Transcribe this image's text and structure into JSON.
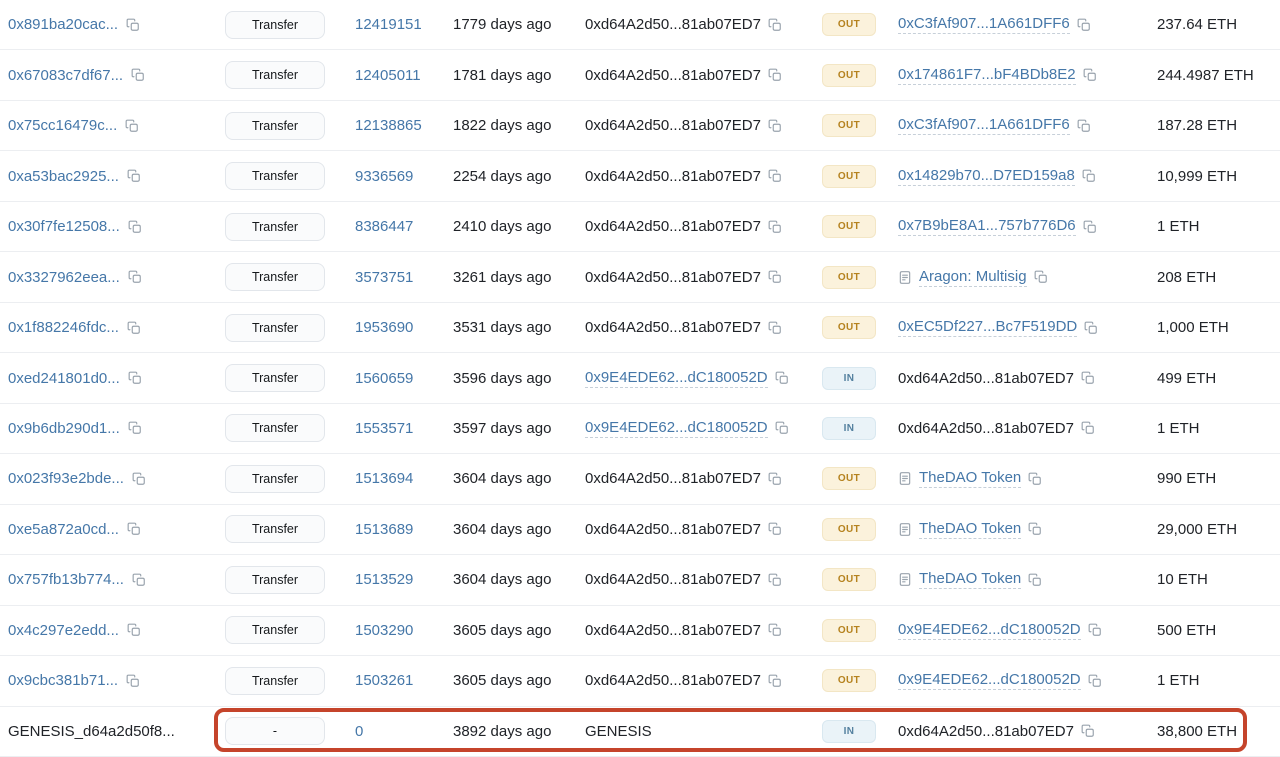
{
  "colors": {
    "link_blue": "#4577a8",
    "text_dark": "#202328",
    "icon_gray": "#99a3ad",
    "badge_out_bg": "#fbf2dc",
    "badge_out_text": "#b5821e",
    "badge_in_bg": "#eaf3f8",
    "badge_in_text": "#54809f",
    "highlight_red": "#c5442b",
    "row_divider": "#eceef1"
  },
  "icons": {
    "copy": "copy-icon",
    "contract": "contract-file-icon"
  },
  "table": {
    "rows": [
      {
        "hash": {
          "text": "0x891ba20cac...",
          "link": true,
          "copy": true
        },
        "method": "Transfer",
        "block": "12419151",
        "age": "1779 days ago",
        "from": {
          "text": "0xd64A2d50...81ab07ED7",
          "link": false,
          "copy": true
        },
        "direction": "OUT",
        "to": {
          "text": "0xC3fAf907...1A661DFF6",
          "link": true,
          "contract": false,
          "copy": true
        },
        "value": "237.64 ETH",
        "highlighted": false
      },
      {
        "hash": {
          "text": "0x67083c7df67...",
          "link": true,
          "copy": true
        },
        "method": "Transfer",
        "block": "12405011",
        "age": "1781 days ago",
        "from": {
          "text": "0xd64A2d50...81ab07ED7",
          "link": false,
          "copy": true
        },
        "direction": "OUT",
        "to": {
          "text": "0x174861F7...bF4BDb8E2",
          "link": true,
          "contract": false,
          "copy": true
        },
        "value": "244.4987 ETH",
        "highlighted": false
      },
      {
        "hash": {
          "text": "0x75cc16479c...",
          "link": true,
          "copy": true
        },
        "method": "Transfer",
        "block": "12138865",
        "age": "1822 days ago",
        "from": {
          "text": "0xd64A2d50...81ab07ED7",
          "link": false,
          "copy": true
        },
        "direction": "OUT",
        "to": {
          "text": "0xC3fAf907...1A661DFF6",
          "link": true,
          "contract": false,
          "copy": true
        },
        "value": "187.28 ETH",
        "highlighted": false
      },
      {
        "hash": {
          "text": "0xa53bac2925...",
          "link": true,
          "copy": true
        },
        "method": "Transfer",
        "block": "9336569",
        "age": "2254 days ago",
        "from": {
          "text": "0xd64A2d50...81ab07ED7",
          "link": false,
          "copy": true
        },
        "direction": "OUT",
        "to": {
          "text": "0x14829b70...D7ED159a8",
          "link": true,
          "contract": false,
          "copy": true
        },
        "value": "10,999 ETH",
        "highlighted": false
      },
      {
        "hash": {
          "text": "0x30f7fe12508...",
          "link": true,
          "copy": true
        },
        "method": "Transfer",
        "block": "8386447",
        "age": "2410 days ago",
        "from": {
          "text": "0xd64A2d50...81ab07ED7",
          "link": false,
          "copy": true
        },
        "direction": "OUT",
        "to": {
          "text": "0x7B9bE8A1...757b776D6",
          "link": true,
          "contract": false,
          "copy": true
        },
        "value": "1 ETH",
        "highlighted": false
      },
      {
        "hash": {
          "text": "0x3327962eea...",
          "link": true,
          "copy": true
        },
        "method": "Transfer",
        "block": "3573751",
        "age": "3261 days ago",
        "from": {
          "text": "0xd64A2d50...81ab07ED7",
          "link": false,
          "copy": true
        },
        "direction": "OUT",
        "to": {
          "text": "Aragon: Multisig",
          "link": true,
          "contract": true,
          "copy": true
        },
        "value": "208 ETH",
        "highlighted": false
      },
      {
        "hash": {
          "text": "0x1f882246fdc...",
          "link": true,
          "copy": true
        },
        "method": "Transfer",
        "block": "1953690",
        "age": "3531 days ago",
        "from": {
          "text": "0xd64A2d50...81ab07ED7",
          "link": false,
          "copy": true
        },
        "direction": "OUT",
        "to": {
          "text": "0xEC5Df227...Bc7F519DD",
          "link": true,
          "contract": false,
          "copy": true
        },
        "value": "1,000 ETH",
        "highlighted": false
      },
      {
        "hash": {
          "text": "0xed241801d0...",
          "link": true,
          "copy": true
        },
        "method": "Transfer",
        "block": "1560659",
        "age": "3596 days ago",
        "from": {
          "text": "0x9E4EDE62...dC180052D",
          "link": true,
          "copy": true
        },
        "direction": "IN",
        "to": {
          "text": "0xd64A2d50...81ab07ED7",
          "link": false,
          "contract": false,
          "copy": true
        },
        "value": "499 ETH",
        "highlighted": false
      },
      {
        "hash": {
          "text": "0x9b6db290d1...",
          "link": true,
          "copy": true
        },
        "method": "Transfer",
        "block": "1553571",
        "age": "3597 days ago",
        "from": {
          "text": "0x9E4EDE62...dC180052D",
          "link": true,
          "copy": true
        },
        "direction": "IN",
        "to": {
          "text": "0xd64A2d50...81ab07ED7",
          "link": false,
          "contract": false,
          "copy": true
        },
        "value": "1 ETH",
        "highlighted": false
      },
      {
        "hash": {
          "text": "0x023f93e2bde...",
          "link": true,
          "copy": true
        },
        "method": "Transfer",
        "block": "1513694",
        "age": "3604 days ago",
        "from": {
          "text": "0xd64A2d50...81ab07ED7",
          "link": false,
          "copy": true
        },
        "direction": "OUT",
        "to": {
          "text": "TheDAO Token",
          "link": true,
          "contract": true,
          "copy": true
        },
        "value": "990 ETH",
        "highlighted": false
      },
      {
        "hash": {
          "text": "0xe5a872a0cd...",
          "link": true,
          "copy": true
        },
        "method": "Transfer",
        "block": "1513689",
        "age": "3604 days ago",
        "from": {
          "text": "0xd64A2d50...81ab07ED7",
          "link": false,
          "copy": true
        },
        "direction": "OUT",
        "to": {
          "text": "TheDAO Token",
          "link": true,
          "contract": true,
          "copy": true
        },
        "value": "29,000 ETH",
        "highlighted": false
      },
      {
        "hash": {
          "text": "0x757fb13b774...",
          "link": true,
          "copy": true
        },
        "method": "Transfer",
        "block": "1513529",
        "age": "3604 days ago",
        "from": {
          "text": "0xd64A2d50...81ab07ED7",
          "link": false,
          "copy": true
        },
        "direction": "OUT",
        "to": {
          "text": "TheDAO Token",
          "link": true,
          "contract": true,
          "copy": true
        },
        "value": "10 ETH",
        "highlighted": false
      },
      {
        "hash": {
          "text": "0x4c297e2edd...",
          "link": true,
          "copy": true
        },
        "method": "Transfer",
        "block": "1503290",
        "age": "3605 days ago",
        "from": {
          "text": "0xd64A2d50...81ab07ED7",
          "link": false,
          "copy": true
        },
        "direction": "OUT",
        "to": {
          "text": "0x9E4EDE62...dC180052D",
          "link": true,
          "contract": false,
          "copy": true
        },
        "value": "500 ETH",
        "highlighted": false
      },
      {
        "hash": {
          "text": "0x9cbc381b71...",
          "link": true,
          "copy": true
        },
        "method": "Transfer",
        "block": "1503261",
        "age": "3605 days ago",
        "from": {
          "text": "0xd64A2d50...81ab07ED7",
          "link": false,
          "copy": true
        },
        "direction": "OUT",
        "to": {
          "text": "0x9E4EDE62...dC180052D",
          "link": true,
          "contract": false,
          "copy": true
        },
        "value": "1 ETH",
        "highlighted": false
      },
      {
        "hash": {
          "text": "GENESIS_d64a2d50f8...",
          "link": false,
          "copy": false
        },
        "method": "-",
        "block": "0",
        "age": "3892 days ago",
        "from": {
          "text": "GENESIS",
          "link": false,
          "copy": false
        },
        "direction": "IN",
        "to": {
          "text": "0xd64A2d50...81ab07ED7",
          "link": false,
          "contract": false,
          "copy": true
        },
        "value": "38,800 ETH",
        "highlighted": true
      }
    ]
  }
}
